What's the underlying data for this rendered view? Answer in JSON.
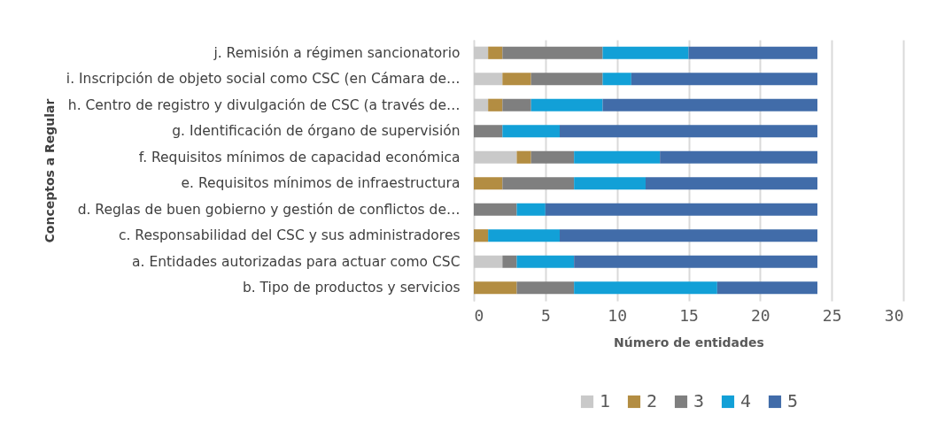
{
  "chart_data": {
    "type": "bar",
    "orientation": "horizontal",
    "stacked": true,
    "xlabel": "Número de entidades",
    "ylabel": "Conceptos a Regular",
    "categories": [
      "j. Remisión a régimen sancionatorio",
      "i. Inscripción de objeto social como CSC (en Cámara de…",
      "h. Centro de registro y divulgación de CSC (a través de…",
      "g. Identificación de órgano de supervisión",
      "f. Requisitos mínimos de capacidad económica",
      "e. Requisitos mínimos de infraestructura",
      "d. Reglas de buen gobierno y gestión de conflictos de…",
      "c. Responsabilidad del CSC y sus administradores",
      "a. Entidades autorizadas para actuar como CSC",
      "b. Tipo de productos y servicios"
    ],
    "series": [
      {
        "name": "1",
        "color": "#c9c9c9",
        "values": [
          1,
          2,
          1,
          0,
          3,
          0,
          0,
          0,
          2,
          0
        ]
      },
      {
        "name": "2",
        "color": "#b38d42",
        "values": [
          1,
          2,
          1,
          0,
          1,
          2,
          0,
          1,
          0,
          3
        ]
      },
      {
        "name": "3",
        "color": "#7f7f7f",
        "values": [
          7,
          5,
          2,
          2,
          3,
          5,
          3,
          0,
          1,
          4
        ]
      },
      {
        "name": "4",
        "color": "#12a0d7",
        "values": [
          6,
          2,
          5,
          4,
          6,
          5,
          2,
          5,
          4,
          10
        ]
      },
      {
        "name": "5",
        "color": "#416ca9",
        "values": [
          9,
          13,
          15,
          18,
          11,
          12,
          19,
          18,
          17,
          7
        ]
      }
    ],
    "xlim": [
      0,
      30
    ],
    "xticks": [
      0,
      5,
      10,
      15,
      20,
      25,
      30
    ],
    "grid": "x",
    "legend": "bottom"
  }
}
